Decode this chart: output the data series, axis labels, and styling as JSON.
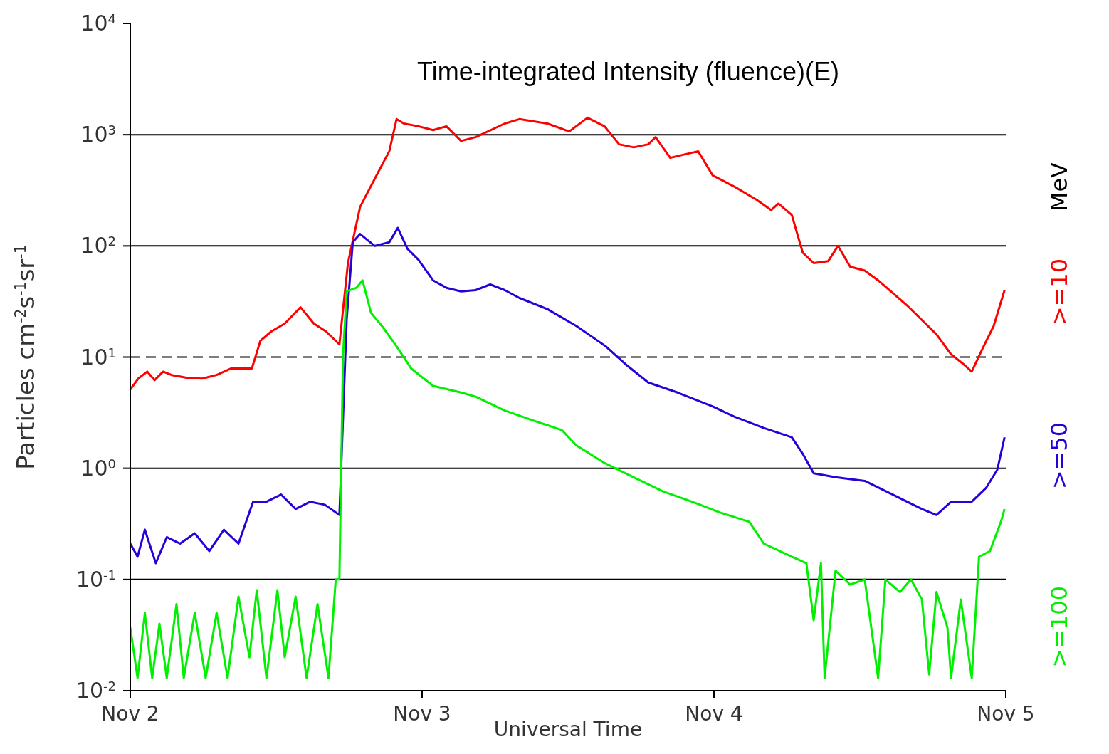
{
  "chart_data": {
    "type": "line",
    "xlabel": "Universal Time",
    "ylabel": "Particles cm$^{-2}$s$^{-1}$sr$^{-1}$",
    "legend_title": "MeV",
    "legend": "right",
    "log": "y",
    "grid": false,
    "marker": "none",
    "line_style": "solid",
    "annotations": [
      "Time-integrated Intensity (fluence)(E)"
    ],
    "xlim": [
      "--11-02",
      "--11-05"
    ],
    "xticks": [
      {
        "value": "--11-02",
        "label": "Nov 2"
      },
      {
        "value": "--11-03",
        "label": "Nov 3"
      },
      {
        "value": "--11-04",
        "label": "Nov 4"
      },
      {
        "value": "--11-05",
        "label": "Nov 5"
      }
    ],
    "ylim": [
      0.01,
      10000
    ],
    "yticks": [
      {
        "value": 0.01,
        "label": "10$^{-2}$"
      },
      {
        "value": 0.1,
        "label": "10$^{-1}$"
      },
      {
        "value": 1,
        "label": "10$^{0}$"
      },
      {
        "value": 10,
        "label": "10$^{1}$"
      },
      {
        "value": 100,
        "label": "10$^{2}$"
      },
      {
        "value": 1000,
        "label": "10$^{3}$"
      },
      {
        "value": 10000,
        "label": "10$^{4}$"
      }
    ],
    "ref_lines": [
      {
        "axis": "y",
        "value": 1000,
        "line_style": "solid",
        "color": "#000000"
      },
      {
        "axis": "y",
        "value": 100,
        "line_style": "solid",
        "color": "#000000"
      },
      {
        "axis": "y",
        "value": 10,
        "line_style": "dashed",
        "color": "#000000"
      },
      {
        "axis": "y",
        "value": 1,
        "line_style": "solid",
        "color": "#000000"
      },
      {
        "axis": "y",
        "value": 0.1,
        "line_style": "solid",
        "color": "#000000"
      }
    ],
    "series": [
      {
        "name": ">=10",
        "color": "#ff0000",
        "x": [
          "--11-02T00:00",
          "--11-02T00:39",
          "--11-02T01:24",
          "--11-02T02:00",
          "--11-02T02:42",
          "--11-02T03:24",
          "--11-02T04:42",
          "--11-02T05:54",
          "--11-02T07:06",
          "--11-02T08:18",
          "--11-02T10:00",
          "--11-02T10:42",
          "--11-02T11:36",
          "--11-02T12:42",
          "--11-02T14:00",
          "--11-02T15:06",
          "--11-02T16:06",
          "--11-02T17:12",
          "--11-02T17:54",
          "--11-02T18:54",
          "--11-02T20:06",
          "--11-02T21:18",
          "--11-02T21:54",
          "--11-02T22:30",
          "--11-02T23:42",
          "--11-03T00:54",
          "--11-03T02:00",
          "--11-03T03:12",
          "--11-03T04:24",
          "--11-03T06:48",
          "--11-03T08:00",
          "--11-03T10:18",
          "--11-03T12:06",
          "--11-03T13:36",
          "--11-03T15:00",
          "--11-03T16:12",
          "--11-03T17:24",
          "--11-03T18:36",
          "--11-03T19:12",
          "--11-03T20:24",
          "--11-03T22:42",
          "--11-03T23:54",
          "--11-04T01:42",
          "--11-04T03:30",
          "--11-04T04:42",
          "--11-04T05:18",
          "--11-04T06:24",
          "--11-04T07:18",
          "--11-04T08:12",
          "--11-04T09:24",
          "--11-04T10:12",
          "--11-04T11:12",
          "--11-04T12:24",
          "--11-04T13:30",
          "--11-04T15:54",
          "--11-04T18:18",
          "--11-04T19:30",
          "--11-04T20:36",
          "--11-04T21:12",
          "--11-04T22:06",
          "--11-04T23:00",
          "--11-04T23:54"
        ],
        "values": [
          5.1,
          6.4,
          7.4,
          6.2,
          7.4,
          6.9,
          6.5,
          6.4,
          6.9,
          7.9,
          7.9,
          14,
          17,
          20,
          28,
          20,
          17,
          13,
          70,
          224,
          400,
          710,
          1380,
          1260,
          1190,
          1100,
          1190,
          880,
          950,
          1260,
          1380,
          1260,
          1070,
          1420,
          1190,
          820,
          770,
          820,
          950,
          620,
          710,
          430,
          340,
          260,
          210,
          240,
          190,
          87,
          70,
          73,
          100,
          65,
          60,
          49,
          29,
          16,
          10.6,
          8.5,
          7.4,
          12,
          19,
          40
        ]
      },
      {
        "name": ">=50",
        "color": "#2a00d8",
        "x": [
          "--11-02T00:00",
          "--11-02T00:36",
          "--11-02T01:12",
          "--11-02T02:06",
          "--11-02T03:00",
          "--11-02T04:06",
          "--11-02T05:18",
          "--11-02T06:30",
          "--11-02T07:42",
          "--11-02T08:54",
          "--11-02T10:06",
          "--11-02T11:12",
          "--11-02T12:24",
          "--11-02T13:36",
          "--11-02T14:48",
          "--11-02T16:00",
          "--11-02T17:12",
          "--11-02T17:48",
          "--11-02T18:18",
          "--11-02T18:54",
          "--11-02T20:06",
          "--11-02T21:18",
          "--11-02T22:00",
          "--11-02T22:48",
          "--11-02T23:42",
          "--11-03T00:54",
          "--11-03T02:00",
          "--11-03T03:12",
          "--11-03T04:24",
          "--11-03T05:36",
          "--11-03T06:48",
          "--11-03T08:00",
          "--11-03T10:18",
          "--11-03T12:42",
          "--11-03T15:06",
          "--11-03T16:48",
          "--11-03T18:36",
          "--11-03T21:00",
          "--11-03T23:54",
          "--11-04T01:42",
          "--11-04T04:06",
          "--11-04T06:24",
          "--11-04T07:18",
          "--11-04T08:12",
          "--11-04T10:00",
          "--11-04T12:24",
          "--11-04T14:42",
          "--11-04T17:06",
          "--11-04T18:18",
          "--11-04T19:30",
          "--11-04T21:12",
          "--11-04T22:24",
          "--11-04T23:18",
          "--11-04T23:54"
        ],
        "values": [
          0.21,
          0.16,
          0.28,
          0.14,
          0.24,
          0.21,
          0.26,
          0.18,
          0.28,
          0.21,
          0.5,
          0.5,
          0.58,
          0.43,
          0.5,
          0.47,
          0.38,
          22,
          108,
          128,
          100,
          108,
          145,
          94,
          75,
          49,
          42,
          39,
          40,
          45,
          40,
          34,
          27,
          19,
          12.5,
          8.5,
          5.9,
          4.8,
          3.6,
          2.9,
          2.3,
          1.9,
          1.35,
          0.9,
          0.83,
          0.77,
          0.58,
          0.43,
          0.38,
          0.5,
          0.5,
          0.67,
          0.97,
          1.9
        ]
      },
      {
        "name": ">=100",
        "color": "#00f000",
        "x": [
          "--11-02T00:00",
          "--11-02T00:36",
          "--11-02T01:12",
          "--11-02T01:48",
          "--11-02T02:24",
          "--11-02T03:00",
          "--11-02T03:48",
          "--11-02T04:24",
          "--11-02T05:18",
          "--11-02T06:12",
          "--11-02T07:06",
          "--11-02T08:00",
          "--11-02T08:54",
          "--11-02T09:48",
          "--11-02T10:24",
          "--11-02T11:12",
          "--11-02T12:06",
          "--11-02T12:42",
          "--11-02T13:36",
          "--11-02T14:30",
          "--11-02T15:24",
          "--11-02T16:18",
          "--11-02T16:54",
          "--11-02T17:12",
          "--11-02T17:30",
          "--11-02T17:48",
          "--11-02T18:36",
          "--11-02T19:06",
          "--11-02T19:48",
          "--11-02T20:42",
          "--11-02T21:54",
          "--11-02T23:06",
          "--11-03T00:54",
          "--11-03T03:12",
          "--11-03T04:24",
          "--11-03T06:48",
          "--11-03T09:06",
          "--11-03T11:30",
          "--11-03T12:42",
          "--11-03T15:06",
          "--11-03T17:24",
          "--11-03T19:48",
          "--11-03T22:12",
          "--11-04T00:30",
          "--11-04T02:54",
          "--11-04T04:06",
          "--11-04T06:24",
          "--11-04T07:36",
          "--11-04T08:12",
          "--11-04T08:48",
          "--11-04T09:06",
          "--11-04T10:00",
          "--11-04T11:12",
          "--11-04T12:24",
          "--11-04T13:30",
          "--11-04T14:06",
          "--11-04T15:18",
          "--11-04T16:12",
          "--11-04T17:06",
          "--11-04T17:42",
          "--11-04T18:18",
          "--11-04T19:12",
          "--11-04T19:30",
          "--11-04T20:18",
          "--11-04T21:12",
          "--11-04T21:48",
          "--11-04T22:42",
          "--11-04T23:36",
          "--11-04T23:54"
        ],
        "values": [
          0.037,
          0.013,
          0.05,
          0.013,
          0.04,
          0.013,
          0.06,
          0.013,
          0.05,
          0.013,
          0.05,
          0.013,
          0.07,
          0.02,
          0.08,
          0.013,
          0.08,
          0.02,
          0.07,
          0.013,
          0.06,
          0.013,
          0.1,
          0.1,
          10.6,
          39,
          42,
          49,
          25,
          19,
          12.5,
          7.9,
          5.5,
          4.8,
          4.4,
          3.3,
          2.7,
          2.2,
          1.6,
          1.1,
          0.83,
          0.62,
          0.5,
          0.4,
          0.33,
          0.21,
          0.16,
          0.14,
          0.043,
          0.14,
          0.013,
          0.12,
          0.09,
          0.1,
          0.013,
          0.1,
          0.077,
          0.1,
          0.066,
          0.014,
          0.077,
          0.037,
          0.013,
          0.066,
          0.013,
          0.16,
          0.18,
          0.33,
          0.43
        ]
      }
    ]
  }
}
